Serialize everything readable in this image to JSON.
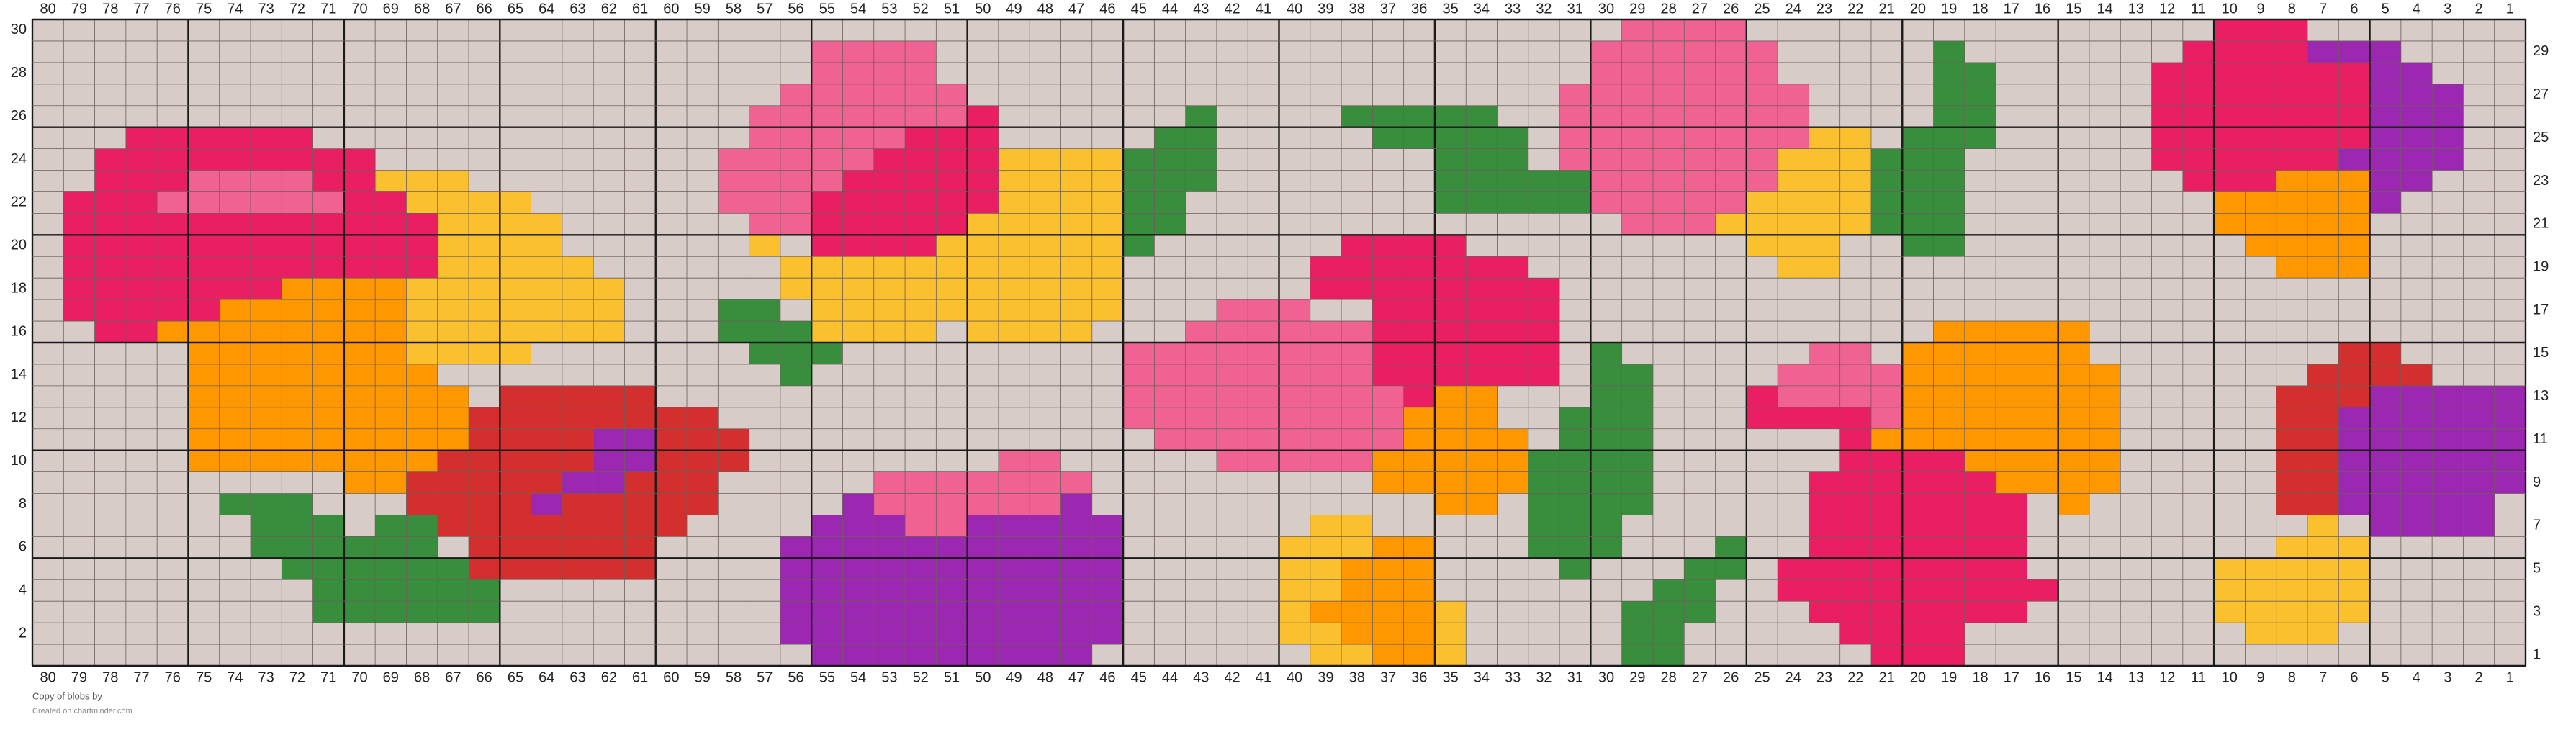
{
  "columns": [
    80,
    79,
    78,
    77,
    76,
    75,
    74,
    73,
    72,
    71,
    70,
    69,
    68,
    67,
    66,
    65,
    64,
    63,
    62,
    61,
    60,
    59,
    58,
    57,
    56,
    55,
    54,
    53,
    52,
    51,
    50,
    49,
    48,
    47,
    46,
    45,
    44,
    43,
    42,
    41,
    40,
    39,
    38,
    37,
    36,
    35,
    34,
    33,
    32,
    31,
    30,
    29,
    28,
    27,
    26,
    25,
    24,
    23,
    22,
    21,
    20,
    19,
    18,
    17,
    16,
    15,
    14,
    13,
    12,
    11,
    10,
    9,
    8,
    7,
    6,
    5,
    4,
    3,
    2,
    1
  ],
  "rows": [
    30,
    29,
    28,
    27,
    26,
    25,
    24,
    23,
    22,
    21,
    20,
    19,
    18,
    17,
    16,
    15,
    14,
    13,
    12,
    11,
    10,
    9,
    8,
    7,
    6,
    5,
    4,
    3,
    2,
    1
  ],
  "palette": {
    ".": "#d7ccc8",
    "M": "#e91e63",
    "P": "#f06292",
    "Y": "#fbc02d",
    "O": "#ff9800",
    "R": "#d32f2f",
    "V": "#9c27b0",
    "G": "#388e3c"
  },
  "grid": [
    [
      "..........",
      "..........",
      "..........",
      "..........",
      "..........",
      ".PPPP.....",
      "..........",
      "MMM......."
    ],
    [
      "..........",
      "..........",
      ".....PPPP.",
      "..........",
      "..........",
      "PPPPPP....",
      ".G.......M",
      "MMMVVV...."
    ],
    [
      "..........",
      "..........",
      ".....PPPP.",
      "..........",
      "..........",
      "PPPPPP....",
      ".GG.....MM",
      "MMMMMVV..."
    ],
    [
      "..........",
      "..........",
      "....PPPPPP",
      "..........",
      ".........P",
      "PPPPPPP...",
      ".GG.....MM",
      "MMMMMVVV.."
    ],
    [
      "..........",
      "..........",
      "...PPPPPPP",
      "M......G..",
      "..GGGGG..P",
      "PPPPPPP...",
      ".GG.....MM",
      "MMMMMVVV.."
    ],
    [
      "...MMMMMM.",
      "..........",
      "...PPPPPMM",
      "M.....GG..",
      "...GGGGG.P",
      "PPPPPPPYY.",
      "GGG.....MM",
      "MMMMMVVV.."
    ],
    [
      "..MMMMMMMM",
      "M.........",
      "..PPPPPMMM",
      "MYYYYGGG..",
      ".....GGG.P",
      "PPPPPPYYYG",
      "GG......MM",
      "MMMMVVVV.."
    ],
    [
      "..MMMPPPPM",
      "MYYY......",
      "..PPPPMMMM",
      "MYYYYGGG..",
      ".....GGGGG",
      "PPPPPPYYYG",
      "GG.......M",
      "MMOOOVV..."
    ],
    [
      ".MMMPPPPPP",
      "MMYYYY....",
      "..PPPMMMMM",
      "MYYYYGG...",
      ".....GGGGG",
      "PPPPPYYYYG",
      "GG........",
      "OOOOOV...."
    ],
    [
      ".MMMMMMMMM",
      "MMMYYYY...",
      "...PPMMMMM",
      "YYYYYGG...",
      "..........",
      ".PPPYYYYYG",
      "GG........",
      "OOOOO....."
    ],
    [
      ".MMMMMMMMM",
      "MMMYYYY...",
      "...Y.MMMMY",
      "YYYYYG....",
      "..MMMM....",
      ".....YYY..",
      "GG........",
      ".OOOO....."
    ],
    [
      ".MMMMMMMMM",
      "MMMYYYYY..",
      "....YYYYYY",
      "YYYYY.....",
      ".MMMMMMM..",
      "......YY..",
      "..........",
      "..OOO....."
    ],
    [
      ".MMMMMMMOO",
      "OOYYYYYYY.",
      "....YYYYYY",
      "YYYYY.....",
      ".MMMMMMMM.",
      "..........",
      "..........",
      ".........."
    ],
    [
      ".MMMMMOOOO",
      "OOYYYYYYY.",
      "..GG.YYYYY",
      "YYYYY...PP",
      "P..MMMMMM.",
      "..........",
      "..........",
      ".........."
    ],
    [
      "..MMOOOOOO",
      "OOYYYYYYY.",
      "..GGGYYYY.",
      "YYYY...PPP",
      "PPPMMMMMM.",
      "..........",
      ".OOOOO....",
      ".........."
    ],
    [
      ".....OOOOO",
      "OOYYYY....",
      "...GGG....",
      ".....PPPPP",
      "PPPMMMMMM.",
      "G......PP.",
      "OOOOOO....",
      "....RR...."
    ],
    [
      ".....OOOOO",
      "OOO.......",
      "....G.....",
      ".....PPPPP",
      "PPPMMMMMM.",
      "GG....PPPP",
      "OOOOOOO...",
      "...RRRR..."
    ],
    [
      ".....OOOOO",
      "OOOO.RRRRR",
      "..........",
      ".....PPPPP",
      "PPPPMOO...",
      "GG...MPPPP",
      "OOOOOOO...",
      "..RRRVVVVV"
    ],
    [
      ".....OOOOO",
      "OOOORRRRRR",
      "RR........",
      ".....PPPPP",
      "PPPPOOO..G",
      "GG...MMMMP",
      "OOOOOOO...",
      "..RRVVVVVV"
    ],
    [
      ".....OOOOO",
      "OOOORRRRVV",
      "RRR.......",
      "......PPPP",
      "PPPPOOOO.G",
      "GG......MO",
      "OOOOOOO...",
      "..RRVVVVVV"
    ],
    [
      ".....OOOOO",
      "OOORRRRRVV",
      "RRR.......",
      ".PP.....PP",
      "PPPOOOOOGG",
      "GG......MM",
      "MMOOOOO...",
      "..RRVVVVVV"
    ],
    [
      "..........",
      "OORRRRRVVR",
      "RR.....PPP",
      "PPPP......",
      "...OOOOOGG",
      "GG.....MMM",
      "MMMOOOO...",
      "..RRVVVVVV"
    ],
    [
      "......GGG.",
      "..RRRRVRRR",
      "RR....VPPP",
      "PPPV......",
      ".....OO.GG",
      "GG.....MMM",
      "MMMM.O....",
      "..RRVVVVV."
    ],
    [
      ".......GGG",
      ".GGRRRRRRR",
      "R....VVVPP",
      "VVVVV.....",
      ".YY.....GG",
      "G......MMM",
      "MMMM......",
      "...Y.VVVV."
    ],
    [
      ".......GGG",
      "GGG.RRRRRR",
      "....VVVVVV",
      "VVVVV.....",
      "YYYOO...GG",
      "G...G..MMM",
      "MMMM......",
      "..YYY....."
    ],
    [
      "........GG",
      "GGGGRRRRRR",
      "....VVVVVV",
      "VVVVV.....",
      "YYOOO....G",
      "...GG.MMMM",
      "MMMM......",
      "YYYYY....."
    ],
    [
      ".........G",
      "GGGGG.....",
      "....VVVVVV",
      "VVVVV.....",
      "YYOOO.....",
      "..GG..MMMM",
      "MMMMM.....",
      "YYYYY....."
    ],
    [
      ".........G",
      "GGGGG.....",
      "....VVVVVV",
      "VVVVV.....",
      "YOOOOY....",
      ".GGG...MMM",
      "MMMM......",
      "YYYYY....."
    ],
    [
      "..........",
      "..........",
      "....VVVVVV",
      "VVVVV.....",
      "YYOOOY....",
      ".GG.....MM",
      "MM........",
      ".YYY......"
    ],
    [
      "..........",
      "..........",
      ".....VVVVV",
      "VVVV......",
      ".YYOOY....",
      ".GG......M",
      "MM........",
      ".........."
    ]
  ],
  "footer": {
    "line1": "Copy of blobs by",
    "line2": "Created on chartminder.com"
  }
}
